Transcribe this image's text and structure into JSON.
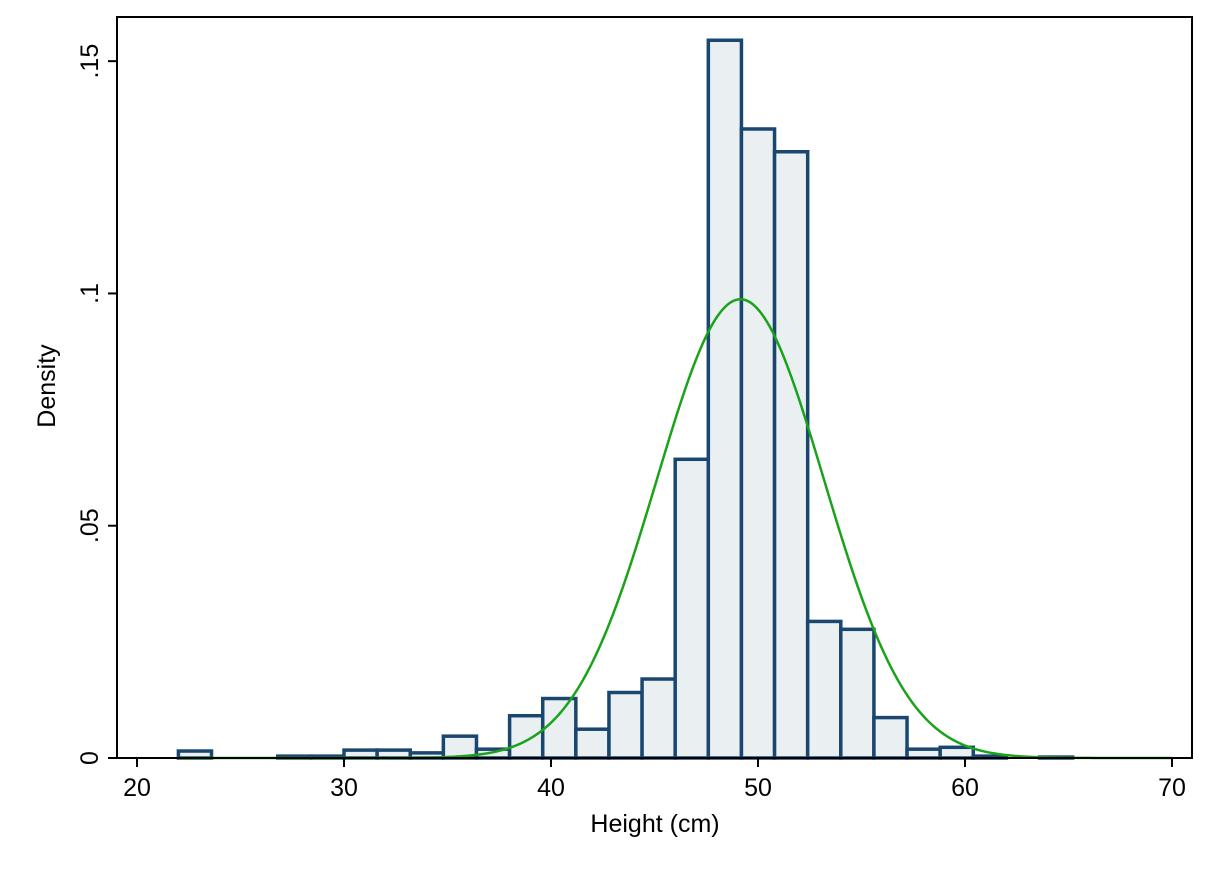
{
  "chart_data": {
    "type": "bar",
    "xlabel": "Height (cm)",
    "ylabel": "Density",
    "xlim": [
      20,
      70
    ],
    "ylim": [
      0,
      0.158
    ],
    "x_ticks": [
      {
        "value": 20,
        "label": "20"
      },
      {
        "value": 30,
        "label": "30"
      },
      {
        "value": 40,
        "label": "40"
      },
      {
        "value": 50,
        "label": "50"
      },
      {
        "value": 60,
        "label": "60"
      },
      {
        "value": 70,
        "label": "70"
      }
    ],
    "y_ticks": [
      {
        "value": 0,
        "label": "0"
      },
      {
        "value": 0.05,
        "label": ".05"
      },
      {
        "value": 0.1,
        "label": ".1"
      },
      {
        "value": 0.15,
        "label": ".15"
      }
    ],
    "grid": false,
    "bins": [
      {
        "x0": 22.0,
        "x1": 23.6,
        "density": 0.0015
      },
      {
        "x0": 23.6,
        "x1": 25.2,
        "density": 0.0
      },
      {
        "x0": 25.2,
        "x1": 26.8,
        "density": 0.0
      },
      {
        "x0": 26.8,
        "x1": 28.4,
        "density": 0.0004
      },
      {
        "x0": 28.4,
        "x1": 30.0,
        "density": 0.0004
      },
      {
        "x0": 30.0,
        "x1": 31.6,
        "density": 0.0017
      },
      {
        "x0": 31.6,
        "x1": 33.2,
        "density": 0.0017
      },
      {
        "x0": 33.2,
        "x1": 34.8,
        "density": 0.0011
      },
      {
        "x0": 34.8,
        "x1": 36.4,
        "density": 0.0047
      },
      {
        "x0": 36.4,
        "x1": 38.0,
        "density": 0.0019
      },
      {
        "x0": 38.0,
        "x1": 39.6,
        "density": 0.0091
      },
      {
        "x0": 39.6,
        "x1": 41.2,
        "density": 0.0128
      },
      {
        "x0": 41.2,
        "x1": 42.8,
        "density": 0.0062
      },
      {
        "x0": 42.8,
        "x1": 44.4,
        "density": 0.0141
      },
      {
        "x0": 44.4,
        "x1": 46.0,
        "density": 0.017
      },
      {
        "x0": 46.0,
        "x1": 47.6,
        "density": 0.0643
      },
      {
        "x0": 47.6,
        "x1": 49.2,
        "density": 0.1545
      },
      {
        "x0": 49.2,
        "x1": 50.8,
        "density": 0.1354
      },
      {
        "x0": 50.8,
        "x1": 52.4,
        "density": 0.1305
      },
      {
        "x0": 52.4,
        "x1": 54.0,
        "density": 0.0294
      },
      {
        "x0": 54.0,
        "x1": 55.6,
        "density": 0.0277
      },
      {
        "x0": 55.6,
        "x1": 57.2,
        "density": 0.0087
      },
      {
        "x0": 57.2,
        "x1": 58.8,
        "density": 0.0019
      },
      {
        "x0": 58.8,
        "x1": 60.4,
        "density": 0.0023
      },
      {
        "x0": 60.4,
        "x1": 62.0,
        "density": 0.0004
      },
      {
        "x0": 62.0,
        "x1": 63.6,
        "density": 0.0
      },
      {
        "x0": 63.6,
        "x1": 65.2,
        "density": 0.0002
      }
    ],
    "normal_curve": {
      "mean": 49.15,
      "sd": 4.04
    },
    "colors": {
      "bar_fill": "#eaf0f2",
      "bar_stroke": "#1a476f",
      "curve": "#1aa31a",
      "axis": "#000000",
      "background": "#ffffff"
    }
  }
}
